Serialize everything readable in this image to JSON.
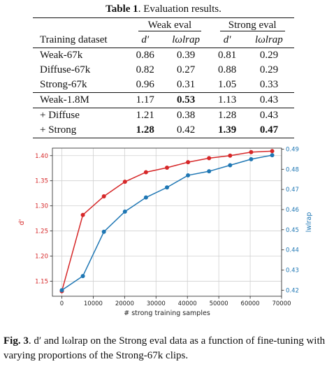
{
  "table": {
    "caption_label": "Table 1",
    "caption_text": ". Evaluation results.",
    "group_headers": [
      "Weak eval",
      "Strong eval"
    ],
    "column_headers": [
      "Training dataset",
      "d′",
      "lωlrap",
      "d′",
      "lωlrap"
    ],
    "rows": [
      {
        "label": "Weak-67k",
        "values": [
          "0.86",
          "0.39",
          "0.81",
          "0.29"
        ]
      },
      {
        "label": "Diffuse-67k",
        "values": [
          "0.82",
          "0.27",
          "0.88",
          "0.29"
        ]
      },
      {
        "label": "Strong-67k",
        "values": [
          "0.96",
          "0.31",
          "1.05",
          "0.33"
        ]
      },
      {
        "label": "Weak-1.8M",
        "values": [
          "1.17",
          "0.53",
          "1.13",
          "0.43"
        ]
      },
      {
        "label": "+ Diffuse",
        "values": [
          "1.21",
          "0.38",
          "1.28",
          "0.43"
        ]
      },
      {
        "label": "+ Strong",
        "values": [
          "1.28",
          "0.42",
          "1.39",
          "0.47"
        ]
      }
    ]
  },
  "chart_data": {
    "type": "line",
    "xlabel": "# strong training samples",
    "ylabel_left": "d'",
    "ylabel_right": "lwlrap",
    "x": [
      0,
      6700,
      13400,
      20100,
      26800,
      33500,
      40200,
      46900,
      53600,
      60300,
      67000
    ],
    "xlim": [
      -3000,
      70000
    ],
    "xticks": [
      0,
      10000,
      20000,
      30000,
      40000,
      50000,
      60000,
      70000
    ],
    "series": [
      {
        "axis": "left",
        "color": "#d62728",
        "values": [
          1.13,
          1.282,
          1.319,
          1.348,
          1.367,
          1.376,
          1.387,
          1.395,
          1.4,
          1.407,
          1.409
        ],
        "ylim": [
          1.12,
          1.415
        ],
        "yticks": [
          "1.15",
          "1.20",
          "1.25",
          "1.30",
          "1.35",
          "1.40"
        ]
      },
      {
        "axis": "right",
        "color": "#1f77b4",
        "values": [
          0.42,
          0.427,
          0.449,
          0.459,
          0.466,
          0.471,
          0.477,
          0.479,
          0.482,
          0.485,
          0.487
        ],
        "ylim": [
          0.417,
          0.4905
        ],
        "yticks": [
          "0.42",
          "0.43",
          "0.44",
          "0.45",
          "0.46",
          "0.47",
          "0.48",
          "0.49"
        ]
      }
    ],
    "grid": true
  },
  "figure_caption": {
    "label": "Fig. 3",
    "text": ". d′ and lωlrap on the Strong eval data as a function of fine-tuning with varying proportions of the Strong-67k clips."
  }
}
